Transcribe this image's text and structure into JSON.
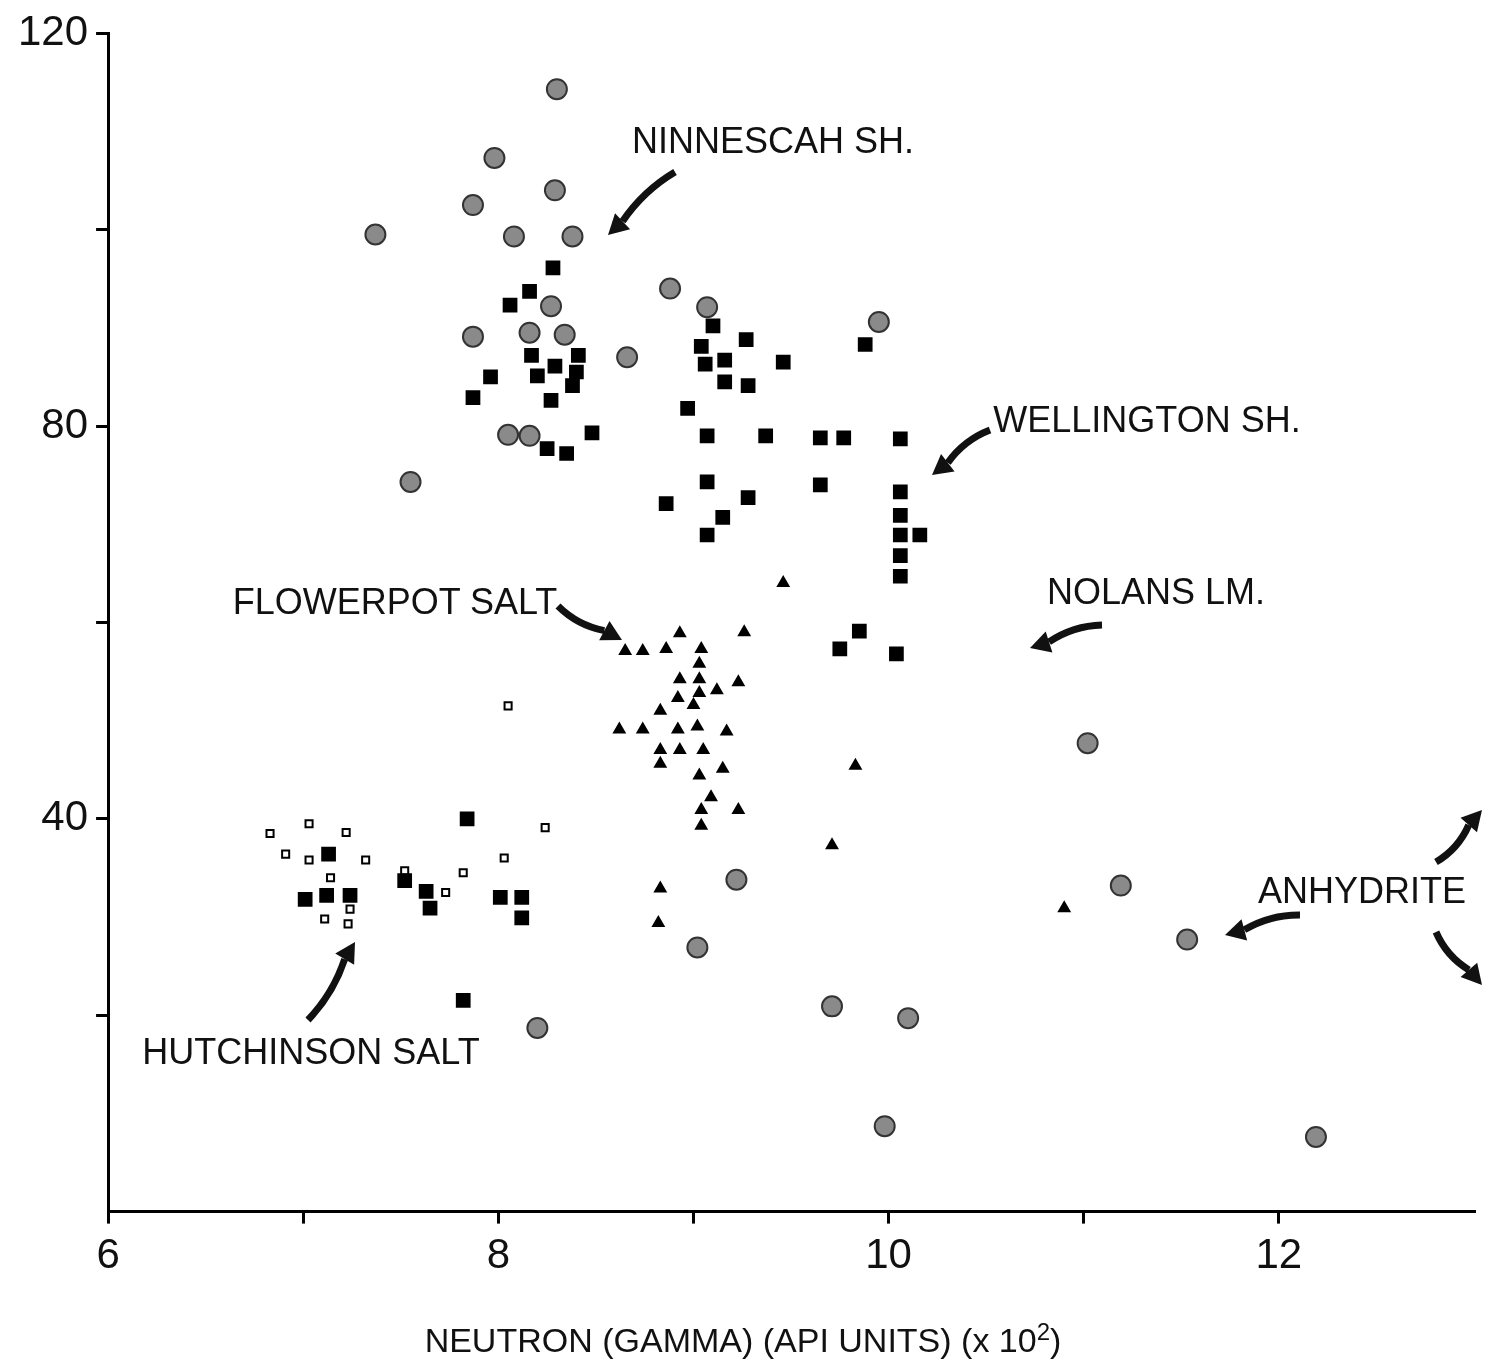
{
  "chart_data": {
    "type": "scatter",
    "xlabel": "NEUTRON (GAMMA) (API UNITS) (x 10$^{2}$)",
    "xlim": [
      6,
      13
    ],
    "ylim": [
      0,
      120
    ],
    "xticks": [
      6,
      {
        "value": 7,
        "label": null
      },
      8,
      {
        "value": 9,
        "label": null
      },
      10,
      {
        "value": 11,
        "label": null
      },
      12
    ],
    "yticks": [
      {
        "value": 20,
        "label": null
      },
      40,
      {
        "value": 60,
        "label": null
      },
      80,
      {
        "value": 100,
        "label": null
      },
      120
    ],
    "grid": false,
    "legend": false,
    "series": [
      {
        "color": "#8a8a8a",
        "marker": "circle",
        "x": [
          8.3,
          7.98,
          8.29,
          7.87,
          7.37,
          8.08,
          8.38,
          8.88,
          8.27,
          9.07,
          9.95,
          7.87,
          8.16,
          8.34,
          8.66,
          8.05,
          8.16,
          7.55,
          11.02,
          9.22,
          11.19,
          11.53,
          9.02,
          9.71,
          10.1,
          8.2,
          9.98,
          12.19
        ],
        "values": [
          114.3,
          107.3,
          104.0,
          102.5,
          99.5,
          99.3,
          99.3,
          94.0,
          92.2,
          92.1,
          90.6,
          89.1,
          89.5,
          89.3,
          87.0,
          79.1,
          79.0,
          74.3,
          47.7,
          33.8,
          33.2,
          27.7,
          26.9,
          20.9,
          19.7,
          18.7,
          8.7,
          7.6
        ]
      },
      {
        "color": "#000000",
        "marker": "square",
        "x": [
          8.28,
          8.06,
          8.16,
          8.17,
          8.29,
          8.2,
          8.41,
          8.4,
          8.38,
          7.96,
          7.87,
          8.27,
          8.25,
          8.35,
          8.48,
          9.1,
          9.04,
          9.06,
          9.16,
          9.27,
          9.16,
          9.28,
          9.46,
          8.97,
          9.07,
          9.37,
          9.65,
          9.77,
          9.07,
          8.86,
          9.28,
          9.15,
          9.07,
          9.65,
          9.88,
          10.06,
          10.06,
          10.06,
          10.06,
          10.06,
          10.06,
          10.16,
          9.75,
          9.85,
          10.04,
          7.84,
          7.13,
          7.01,
          7.12,
          7.24,
          7.52,
          7.63,
          8.01,
          8.12,
          8.12,
          7.82,
          7.65
        ],
        "values": [
          96.1,
          92.3,
          93.7,
          87.2,
          86.1,
          85.1,
          87.2,
          85.5,
          84.1,
          85.0,
          82.9,
          82.6,
          77.7,
          77.2,
          79.3,
          90.2,
          88.1,
          86.3,
          86.7,
          88.8,
          84.5,
          84.1,
          86.5,
          81.8,
          79.0,
          79.0,
          78.8,
          78.8,
          74.3,
          72.1,
          72.7,
          70.7,
          68.9,
          74.0,
          88.3,
          78.7,
          73.3,
          70.9,
          68.9,
          66.8,
          64.7,
          68.9,
          57.3,
          59.1,
          56.8,
          40.0,
          36.4,
          31.8,
          32.2,
          32.2,
          33.7,
          32.6,
          32.0,
          32.0,
          29.9,
          21.5,
          30.9
        ]
      },
      {
        "color": "#000000",
        "marker": "square",
        "x": [
          8.05,
          6.83,
          7.03,
          7.22,
          6.91,
          7.03,
          7.14,
          7.32,
          7.11,
          7.23,
          7.24,
          7.73,
          7.82,
          7.52,
          8.03,
          8.24
        ],
        "values": [
          51.5,
          38.5,
          39.5,
          38.6,
          36.4,
          35.8,
          34.0,
          35.8,
          29.8,
          29.3,
          30.8,
          32.5,
          34.5,
          34.7,
          36.0,
          39.1
        ]
      },
      {
        "color": "#000000",
        "marker": "triangle",
        "x": [
          8.65,
          8.74,
          8.86,
          8.93,
          9.04,
          9.26,
          9.46,
          9.03,
          9.03,
          8.93,
          9.03,
          9.23,
          9.12,
          8.92,
          9.0,
          8.83,
          8.62,
          8.74,
          8.92,
          9.02,
          9.17,
          8.83,
          8.93,
          9.05,
          8.83,
          9.15,
          9.03,
          9.09,
          9.04,
          9.23,
          9.04,
          9.83,
          9.71,
          8.83,
          8.82,
          10.9
        ],
        "values": [
          57.1,
          57.1,
          57.3,
          58.9,
          57.3,
          59.0,
          64.0,
          55.8,
          54.2,
          54.2,
          52.8,
          53.9,
          53.1,
          52.3,
          51.6,
          51.0,
          49.1,
          49.1,
          49.1,
          49.4,
          48.9,
          47.0,
          47.0,
          47.0,
          45.6,
          45.1,
          44.4,
          42.2,
          40.9,
          40.9,
          39.3,
          45.4,
          37.3,
          32.9,
          29.4,
          30.9
        ]
      }
    ],
    "annotations": [
      "NINNESCAH SH.",
      "WELLINGTON SH.",
      "FLOWERPOT SALT",
      "NOLANS LM.",
      "ANHYDRITE",
      "HUTCHINSON SALT"
    ]
  }
}
